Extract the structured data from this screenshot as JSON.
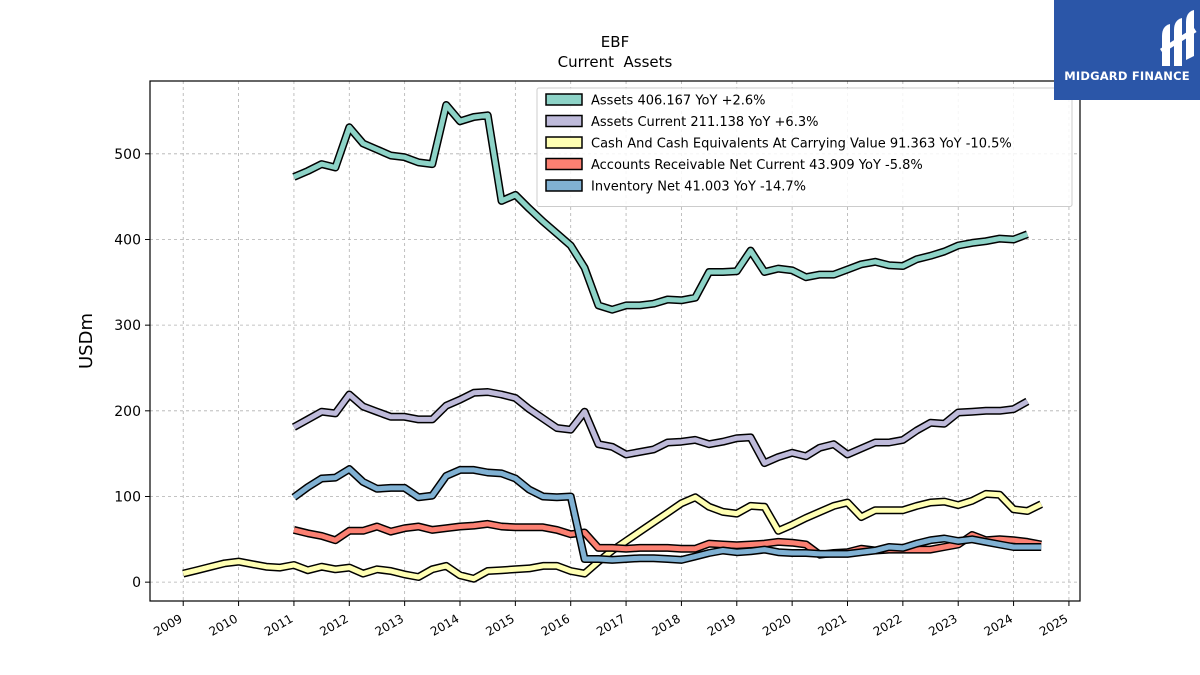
{
  "brand": {
    "name": "MIDGARD FINANCE",
    "logo_icon": "midgard-finance-logo-icon",
    "background": "#2b56a8"
  },
  "chart_data": {
    "type": "line",
    "title": "EBF",
    "subtitle": "Current  Assets",
    "ylabel": "USDm",
    "xlabel": "",
    "ylim": [
      -22,
      585
    ],
    "xlim": [
      2008.4,
      2025.2
    ],
    "x_ticks": [
      "2009",
      "2010",
      "2011",
      "2012",
      "2013",
      "2014",
      "2015",
      "2016",
      "2017",
      "2018",
      "2019",
      "2020",
      "2021",
      "2022",
      "2023",
      "2024",
      "2025"
    ],
    "y_ticks": [
      "0",
      "100",
      "200",
      "300",
      "400",
      "500"
    ],
    "grid": true,
    "legend_position": "top-right",
    "series": [
      {
        "name": "Assets  406.167 YoY +2.6%",
        "color": "#8dd3c7",
        "points": [
          [
            2011.0,
            473
          ],
          [
            2011.25,
            480
          ],
          [
            2011.5,
            488
          ],
          [
            2011.75,
            484
          ],
          [
            2012.0,
            531
          ],
          [
            2012.25,
            512
          ],
          [
            2012.5,
            505
          ],
          [
            2012.75,
            498
          ],
          [
            2013.0,
            496
          ],
          [
            2013.25,
            490
          ],
          [
            2013.5,
            488
          ],
          [
            2013.75,
            557
          ],
          [
            2014.0,
            538
          ],
          [
            2014.25,
            543
          ],
          [
            2014.5,
            545
          ],
          [
            2014.75,
            445
          ],
          [
            2015.0,
            452
          ],
          [
            2015.25,
            436
          ],
          [
            2015.5,
            421
          ],
          [
            2015.75,
            407
          ],
          [
            2016.0,
            393
          ],
          [
            2016.25,
            367
          ],
          [
            2016.5,
            323
          ],
          [
            2016.75,
            318
          ],
          [
            2017.0,
            323
          ],
          [
            2017.25,
            323
          ],
          [
            2017.5,
            325
          ],
          [
            2017.75,
            330
          ],
          [
            2018.0,
            329
          ],
          [
            2018.25,
            332
          ],
          [
            2018.5,
            362
          ],
          [
            2018.75,
            362
          ],
          [
            2019.0,
            363
          ],
          [
            2019.25,
            387
          ],
          [
            2019.5,
            362
          ],
          [
            2019.75,
            366
          ],
          [
            2020.0,
            364
          ],
          [
            2020.25,
            356
          ],
          [
            2020.5,
            359
          ],
          [
            2020.75,
            359
          ],
          [
            2021.0,
            365
          ],
          [
            2021.25,
            371
          ],
          [
            2021.5,
            374
          ],
          [
            2021.75,
            370
          ],
          [
            2022.0,
            369
          ],
          [
            2022.25,
            377
          ],
          [
            2022.5,
            381
          ],
          [
            2022.75,
            386
          ],
          [
            2023.0,
            393
          ],
          [
            2023.25,
            396
          ],
          [
            2023.5,
            398
          ],
          [
            2023.75,
            401
          ],
          [
            2024.0,
            400
          ],
          [
            2024.25,
            406
          ]
        ]
      },
      {
        "name": "Assets Current  211.138 YoY +6.3%",
        "color": "#bebada",
        "points": [
          [
            2011.0,
            181
          ],
          [
            2011.25,
            190
          ],
          [
            2011.5,
            199
          ],
          [
            2011.75,
            197
          ],
          [
            2012.0,
            219
          ],
          [
            2012.25,
            205
          ],
          [
            2012.5,
            199
          ],
          [
            2012.75,
            193
          ],
          [
            2013.0,
            193
          ],
          [
            2013.25,
            190
          ],
          [
            2013.5,
            190
          ],
          [
            2013.75,
            206
          ],
          [
            2014.0,
            213
          ],
          [
            2014.25,
            221
          ],
          [
            2014.5,
            222
          ],
          [
            2014.75,
            219
          ],
          [
            2015.0,
            215
          ],
          [
            2015.25,
            202
          ],
          [
            2015.5,
            191
          ],
          [
            2015.75,
            180
          ],
          [
            2016.0,
            178
          ],
          [
            2016.25,
            199
          ],
          [
            2016.5,
            161
          ],
          [
            2016.75,
            158
          ],
          [
            2017.0,
            149
          ],
          [
            2017.25,
            152
          ],
          [
            2017.5,
            155
          ],
          [
            2017.75,
            163
          ],
          [
            2018.0,
            164
          ],
          [
            2018.25,
            166
          ],
          [
            2018.5,
            161
          ],
          [
            2018.75,
            164
          ],
          [
            2019.0,
            168
          ],
          [
            2019.25,
            169
          ],
          [
            2019.5,
            139
          ],
          [
            2019.75,
            146
          ],
          [
            2020.0,
            151
          ],
          [
            2020.25,
            147
          ],
          [
            2020.5,
            157
          ],
          [
            2020.75,
            161
          ],
          [
            2021.0,
            149
          ],
          [
            2021.25,
            156
          ],
          [
            2021.5,
            163
          ],
          [
            2021.75,
            163
          ],
          [
            2022.0,
            166
          ],
          [
            2022.25,
            177
          ],
          [
            2022.5,
            186
          ],
          [
            2022.75,
            185
          ],
          [
            2023.0,
            198
          ],
          [
            2023.25,
            199
          ],
          [
            2023.5,
            200
          ],
          [
            2023.75,
            200
          ],
          [
            2024.0,
            202
          ],
          [
            2024.25,
            211
          ]
        ]
      },
      {
        "name": "Cash And Cash Equivalents At Carrying Value  91.363 YoY -10.5%",
        "color": "#ffffb3",
        "points": [
          [
            2009.0,
            10
          ],
          [
            2009.25,
            14
          ],
          [
            2009.5,
            18
          ],
          [
            2009.75,
            22
          ],
          [
            2010.0,
            24
          ],
          [
            2010.25,
            21
          ],
          [
            2010.5,
            18
          ],
          [
            2010.75,
            17
          ],
          [
            2011.0,
            20
          ],
          [
            2011.25,
            14
          ],
          [
            2011.5,
            18
          ],
          [
            2011.75,
            15
          ],
          [
            2012.0,
            17
          ],
          [
            2012.25,
            10
          ],
          [
            2012.5,
            15
          ],
          [
            2012.75,
            13
          ],
          [
            2013.0,
            9
          ],
          [
            2013.25,
            6
          ],
          [
            2013.5,
            15
          ],
          [
            2013.75,
            19
          ],
          [
            2014.0,
            8
          ],
          [
            2014.25,
            4
          ],
          [
            2014.5,
            13
          ],
          [
            2014.75,
            14
          ],
          [
            2015.0,
            15
          ],
          [
            2015.25,
            16
          ],
          [
            2015.5,
            19
          ],
          [
            2015.75,
            19
          ],
          [
            2016.0,
            13
          ],
          [
            2016.25,
            10
          ],
          [
            2016.5,
            24
          ],
          [
            2016.75,
            37
          ],
          [
            2017.0,
            48
          ],
          [
            2017.25,
            59
          ],
          [
            2017.5,
            70
          ],
          [
            2017.75,
            81
          ],
          [
            2018.0,
            92
          ],
          [
            2018.25,
            99
          ],
          [
            2018.5,
            88
          ],
          [
            2018.75,
            82
          ],
          [
            2019.0,
            80
          ],
          [
            2019.25,
            89
          ],
          [
            2019.5,
            88
          ],
          [
            2019.75,
            60
          ],
          [
            2020.0,
            67
          ],
          [
            2020.25,
            75
          ],
          [
            2020.5,
            82
          ],
          [
            2020.75,
            89
          ],
          [
            2021.0,
            93
          ],
          [
            2021.25,
            76
          ],
          [
            2021.5,
            84
          ],
          [
            2021.75,
            84
          ],
          [
            2022.0,
            84
          ],
          [
            2022.25,
            89
          ],
          [
            2022.5,
            93
          ],
          [
            2022.75,
            94
          ],
          [
            2023.0,
            90
          ],
          [
            2023.25,
            95
          ],
          [
            2023.5,
            103
          ],
          [
            2023.75,
            102
          ],
          [
            2024.0,
            85
          ],
          [
            2024.25,
            83
          ],
          [
            2024.5,
            91
          ]
        ]
      },
      {
        "name": "Accounts Receivable Net Current  43.909 YoY -5.8%",
        "color": "#fb8072",
        "points": [
          [
            2011.0,
            61
          ],
          [
            2011.25,
            57
          ],
          [
            2011.5,
            54
          ],
          [
            2011.75,
            49
          ],
          [
            2012.0,
            60
          ],
          [
            2012.25,
            60
          ],
          [
            2012.5,
            65
          ],
          [
            2012.75,
            59
          ],
          [
            2013.0,
            63
          ],
          [
            2013.25,
            65
          ],
          [
            2013.5,
            61
          ],
          [
            2013.75,
            63
          ],
          [
            2014.0,
            65
          ],
          [
            2014.25,
            66
          ],
          [
            2014.5,
            68
          ],
          [
            2014.75,
            65
          ],
          [
            2015.0,
            64
          ],
          [
            2015.25,
            64
          ],
          [
            2015.5,
            64
          ],
          [
            2015.75,
            61
          ],
          [
            2016.0,
            56
          ],
          [
            2016.25,
            58
          ],
          [
            2016.5,
            40
          ],
          [
            2016.75,
            40
          ],
          [
            2017.0,
            39
          ],
          [
            2017.25,
            40
          ],
          [
            2017.5,
            40
          ],
          [
            2017.75,
            40
          ],
          [
            2018.0,
            39
          ],
          [
            2018.25,
            39
          ],
          [
            2018.5,
            45
          ],
          [
            2018.75,
            44
          ],
          [
            2019.0,
            43
          ],
          [
            2019.25,
            44
          ],
          [
            2019.5,
            45
          ],
          [
            2019.75,
            47
          ],
          [
            2020.0,
            46
          ],
          [
            2020.25,
            44
          ],
          [
            2020.5,
            32
          ],
          [
            2020.75,
            34
          ],
          [
            2021.0,
            35
          ],
          [
            2021.25,
            39
          ],
          [
            2021.5,
            37
          ],
          [
            2021.75,
            38
          ],
          [
            2022.0,
            38
          ],
          [
            2022.25,
            38
          ],
          [
            2022.5,
            38
          ],
          [
            2022.75,
            41
          ],
          [
            2023.0,
            44
          ],
          [
            2023.25,
            55
          ],
          [
            2023.5,
            49
          ],
          [
            2023.75,
            50
          ],
          [
            2024.0,
            49
          ],
          [
            2024.25,
            47
          ],
          [
            2024.5,
            44
          ]
        ]
      },
      {
        "name": "Inventory Net  41.003 YoY -14.7%",
        "color": "#80b1d3",
        "points": [
          [
            2011.0,
            99
          ],
          [
            2011.25,
            111
          ],
          [
            2011.5,
            121
          ],
          [
            2011.75,
            122
          ],
          [
            2012.0,
            132
          ],
          [
            2012.25,
            117
          ],
          [
            2012.5,
            109
          ],
          [
            2012.75,
            110
          ],
          [
            2013.0,
            110
          ],
          [
            2013.25,
            99
          ],
          [
            2013.5,
            101
          ],
          [
            2013.75,
            124
          ],
          [
            2014.0,
            131
          ],
          [
            2014.25,
            131
          ],
          [
            2014.5,
            128
          ],
          [
            2014.75,
            127
          ],
          [
            2015.0,
            121
          ],
          [
            2015.25,
            108
          ],
          [
            2015.5,
            100
          ],
          [
            2015.75,
            99
          ],
          [
            2016.0,
            100
          ],
          [
            2016.25,
            27
          ],
          [
            2016.5,
            27
          ],
          [
            2016.75,
            26
          ],
          [
            2017.0,
            27
          ],
          [
            2017.25,
            28
          ],
          [
            2017.5,
            28
          ],
          [
            2017.75,
            27
          ],
          [
            2018.0,
            26
          ],
          [
            2018.25,
            30
          ],
          [
            2018.5,
            34
          ],
          [
            2018.75,
            37
          ],
          [
            2019.0,
            35
          ],
          [
            2019.25,
            36
          ],
          [
            2019.5,
            38
          ],
          [
            2019.75,
            35
          ],
          [
            2020.0,
            34
          ],
          [
            2020.25,
            34
          ],
          [
            2020.5,
            33
          ],
          [
            2020.75,
            33
          ],
          [
            2021.0,
            33
          ],
          [
            2021.25,
            35
          ],
          [
            2021.5,
            37
          ],
          [
            2021.75,
            41
          ],
          [
            2022.0,
            40
          ],
          [
            2022.25,
            45
          ],
          [
            2022.5,
            49
          ],
          [
            2022.75,
            51
          ],
          [
            2023.0,
            48
          ],
          [
            2023.25,
            50
          ],
          [
            2023.5,
            47
          ],
          [
            2023.75,
            44
          ],
          [
            2024.0,
            41
          ],
          [
            2024.25,
            41
          ],
          [
            2024.5,
            41
          ]
        ]
      }
    ]
  }
}
